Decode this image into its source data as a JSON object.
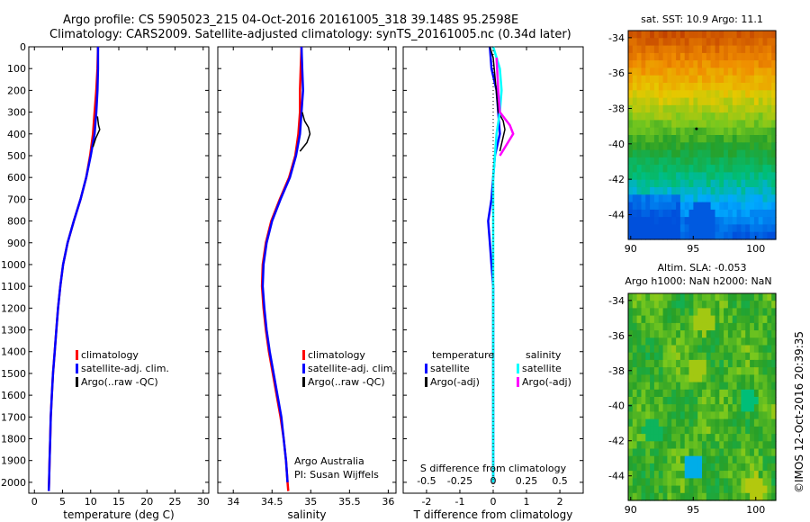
{
  "header": {
    "line1": "Argo profile: CS 5905023_215 04-Oct-2016 20161005_318 39.148S 95.2598E",
    "line2": "Climatology: CARS2009. Satellite-adjusted climatology: synTS_20161005.nc (0.34d later)"
  },
  "side_text": "©IMOS 12-Oct-2016 20:39:35",
  "colors": {
    "climatology": "#ff0000",
    "satellite_adj": "#0000ff",
    "argo": "#000000",
    "sal_sat": "#00ffff",
    "sal_argo": "#ff00ff"
  },
  "chart_data": [
    {
      "type": "line",
      "panel": "temperature",
      "xlabel": "temperature (deg C)",
      "ylabel": "",
      "xlim": [
        -1,
        31
      ],
      "ylim": [
        2050,
        0
      ],
      "xticks": [
        0,
        5,
        10,
        15,
        20,
        25,
        30
      ],
      "yticks": [
        0,
        100,
        200,
        300,
        400,
        500,
        600,
        700,
        800,
        900,
        1000,
        1100,
        1200,
        1300,
        1400,
        1500,
        1600,
        1700,
        1800,
        1900,
        2000
      ],
      "legend": [
        "climatology",
        "satellite-adj. clim.",
        "Argo(..raw -QC)"
      ],
      "series": [
        {
          "name": "climatology",
          "color": "red",
          "x": [
            11.3,
            11.2,
            11.0,
            10.7,
            10.4,
            9.9,
            9.2,
            8.2,
            7.0,
            5.9,
            5.1,
            4.6,
            4.2,
            3.9,
            3.6,
            3.3,
            3.1,
            2.9,
            2.8,
            2.7,
            2.6,
            2.55
          ],
          "y": [
            0,
            100,
            200,
            300,
            400,
            500,
            600,
            700,
            800,
            900,
            1000,
            1100,
            1200,
            1300,
            1400,
            1500,
            1600,
            1700,
            1800,
            1900,
            2000,
            2040
          ]
        },
        {
          "name": "satellite-adj. clim.",
          "color": "blue",
          "x": [
            11.3,
            11.3,
            11.2,
            11.0,
            10.7,
            10.0,
            9.2,
            8.2,
            7.0,
            5.9,
            5.1,
            4.6,
            4.2,
            3.9,
            3.6,
            3.3,
            3.1,
            2.9,
            2.8,
            2.7,
            2.6,
            2.55
          ],
          "y": [
            0,
            100,
            200,
            300,
            400,
            500,
            600,
            700,
            800,
            900,
            1000,
            1100,
            1200,
            1300,
            1400,
            1500,
            1600,
            1700,
            1800,
            1900,
            2000,
            2040
          ]
        },
        {
          "name": "Argo(..raw -QC)",
          "color": "black",
          "x": [
            11.2,
            11.3,
            11.4,
            11.6,
            10.9,
            10.4
          ],
          "y": [
            320,
            340,
            360,
            380,
            420,
            460
          ]
        }
      ]
    },
    {
      "type": "line",
      "panel": "salinity",
      "xlabel": "salinity",
      "xlim": [
        33.8,
        36.1
      ],
      "ylim": [
        2050,
        0
      ],
      "xticks": [
        34,
        34.5,
        35,
        35.5,
        36
      ],
      "legend": [
        "climatology",
        "satellite-adj. clim.",
        "Argo(..raw -QC)"
      ],
      "annotations": [
        "Argo Australia",
        "PI: Susan Wijffels"
      ],
      "series": [
        {
          "name": "climatology",
          "color": "red",
          "x": [
            34.88,
            34.87,
            34.86,
            34.86,
            34.84,
            34.8,
            34.72,
            34.6,
            34.49,
            34.42,
            34.38,
            34.37,
            34.39,
            34.42,
            34.46,
            34.51,
            34.56,
            34.61,
            34.65,
            34.68,
            34.7,
            34.71
          ],
          "y": [
            0,
            100,
            200,
            300,
            400,
            500,
            600,
            700,
            800,
            900,
            1000,
            1100,
            1200,
            1300,
            1400,
            1500,
            1600,
            1700,
            1800,
            1900,
            2000,
            2040
          ]
        },
        {
          "name": "satellite-adj. clim.",
          "color": "blue",
          "x": [
            34.88,
            34.89,
            34.9,
            34.88,
            34.86,
            34.81,
            34.73,
            34.61,
            34.5,
            34.43,
            34.39,
            34.38,
            34.4,
            34.43,
            34.47,
            34.52,
            34.57,
            34.62,
            34.65,
            34.68,
            34.7
          ],
          "y": [
            0,
            100,
            200,
            300,
            400,
            500,
            600,
            700,
            800,
            900,
            1000,
            1100,
            1200,
            1300,
            1400,
            1500,
            1600,
            1700,
            1800,
            1900,
            2000
          ]
        },
        {
          "name": "Argo(..raw -QC)",
          "color": "black",
          "x": [
            34.89,
            34.92,
            34.97,
            34.99,
            34.95,
            34.86
          ],
          "y": [
            300,
            340,
            370,
            400,
            440,
            480
          ]
        }
      ]
    },
    {
      "type": "line",
      "panel": "differences",
      "xlabel": "T difference from climatology",
      "xlabel_top": "S difference from climatology",
      "xlim": [
        -2.7,
        2.7
      ],
      "ylim": [
        2050,
        0
      ],
      "xticks": [
        -2,
        -1,
        0,
        1,
        2
      ],
      "xticks_top": [
        "-0.5",
        "-0.25",
        "0",
        "0.25",
        "0.5"
      ],
      "legend_temperature": [
        "temperature",
        "satellite",
        "Argo(-adj)"
      ],
      "legend_salinity": [
        "salinity",
        "satellite",
        "Argo(-adj)"
      ],
      "series": [
        {
          "name": "temperature satellite",
          "color": "blue",
          "x": [
            -0.1,
            -0.05,
            0.1,
            0.15,
            0.2,
            0.05,
            0.0,
            -0.05,
            -0.15,
            -0.1,
            -0.05,
            0.0,
            0.0,
            0.0,
            0.0,
            0.0,
            0.0,
            0.0,
            0.0,
            0.0,
            0.0
          ],
          "y": [
            0,
            100,
            200,
            300,
            400,
            500,
            600,
            700,
            800,
            900,
            1000,
            1100,
            1200,
            1300,
            1400,
            1500,
            1600,
            1700,
            1800,
            1900,
            2000
          ]
        },
        {
          "name": "temperature Argo(-adj)",
          "color": "black",
          "x": [
            -0.1,
            0.0,
            0.15,
            0.3,
            0.35,
            0.2
          ],
          "y": [
            0,
            50,
            300,
            340,
            380,
            480
          ]
        },
        {
          "name": "salinity satellite",
          "color": "cyan",
          "x": [
            0.0,
            0.2,
            0.25,
            0.2,
            0.1,
            0.05,
            0.0,
            0.0,
            0.0,
            0.0,
            0.0,
            0.0,
            0.0,
            0.0,
            0.0,
            0.0,
            0.0,
            0.0,
            0.0,
            0.0,
            0.0
          ],
          "y": [
            0,
            100,
            200,
            300,
            400,
            500,
            600,
            700,
            800,
            900,
            1000,
            1100,
            1200,
            1300,
            1400,
            1500,
            1600,
            1700,
            1800,
            1900,
            2000
          ]
        },
        {
          "name": "salinity Argo(-adj)",
          "color": "magenta",
          "x": [
            0.1,
            0.15,
            0.2,
            0.5,
            0.6,
            0.2
          ],
          "y": [
            50,
            200,
            300,
            360,
            400,
            500
          ]
        }
      ]
    },
    {
      "type": "heatmap",
      "panel": "sst_map",
      "title": "sat. SST: 10.9 Argo: 11.1",
      "xticks": [
        90,
        95,
        100
      ],
      "yticks": [
        -34,
        -36,
        -38,
        -40,
        -42,
        -44
      ],
      "xlim": [
        89.8,
        101.6
      ],
      "ylim": [
        -45.4,
        -33.6
      ]
    },
    {
      "type": "heatmap",
      "panel": "sla_map",
      "title": "Altim. SLA: -0.053",
      "subtitle": "Argo h1000: NaN h2000: NaN",
      "xticks": [
        90,
        95,
        100
      ],
      "yticks": [
        -34,
        -36,
        -38,
        -40,
        -42,
        -44
      ],
      "xlim": [
        89.8,
        101.6
      ],
      "ylim": [
        -45.4,
        -33.6
      ]
    }
  ]
}
